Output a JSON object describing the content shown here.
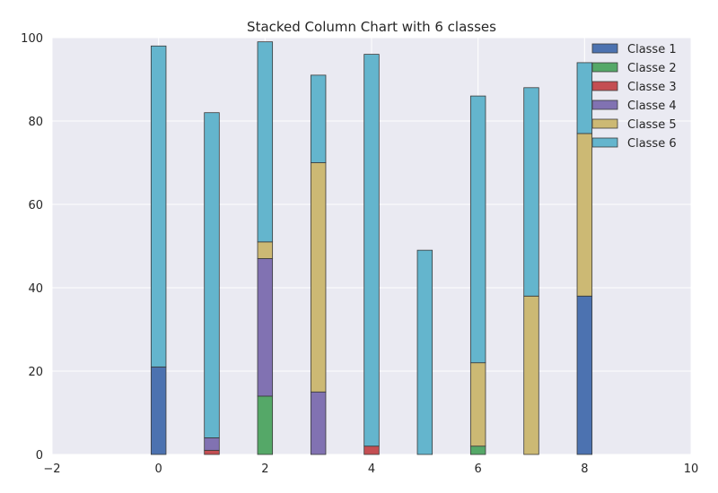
{
  "chart_data": {
    "type": "bar",
    "stacked": true,
    "title": "Stacked Column Chart with 6 classes",
    "xlabel": "",
    "ylabel": "",
    "xlim": [
      -2,
      10
    ],
    "ylim": [
      0,
      100
    ],
    "x_ticks": [
      -2,
      0,
      2,
      4,
      6,
      8,
      10
    ],
    "y_ticks": [
      0,
      20,
      40,
      60,
      80,
      100
    ],
    "x_tick_labels": [
      "−2",
      "0",
      "2",
      "4",
      "6",
      "8",
      "10"
    ],
    "y_tick_labels": [
      "0",
      "20",
      "40",
      "60",
      "80",
      "100"
    ],
    "grid": true,
    "legend_position": "top-right",
    "x": [
      0,
      1,
      2,
      3,
      4,
      5,
      6,
      7,
      8
    ],
    "series": [
      {
        "name": "Classe 1",
        "color": "#4c72b0",
        "values": [
          21,
          0,
          0,
          0,
          0,
          0,
          0,
          0,
          38
        ]
      },
      {
        "name": "Classe 2",
        "color": "#55a868",
        "values": [
          0,
          0,
          14,
          0,
          0,
          0,
          2,
          0,
          0
        ]
      },
      {
        "name": "Classe 3",
        "color": "#c44e52",
        "values": [
          0,
          1,
          0,
          0,
          2,
          0,
          0,
          0,
          0
        ]
      },
      {
        "name": "Classe 4",
        "color": "#8172b2",
        "values": [
          0,
          3,
          33,
          15,
          0,
          0,
          0,
          0,
          0
        ]
      },
      {
        "name": "Classe 5",
        "color": "#ccb974",
        "values": [
          0,
          0,
          4,
          55,
          0,
          0,
          20,
          38,
          39
        ]
      },
      {
        "name": "Classe 6",
        "color": "#64b5cd",
        "values": [
          77,
          78,
          48,
          21,
          94,
          49,
          64,
          50,
          17
        ]
      }
    ]
  }
}
